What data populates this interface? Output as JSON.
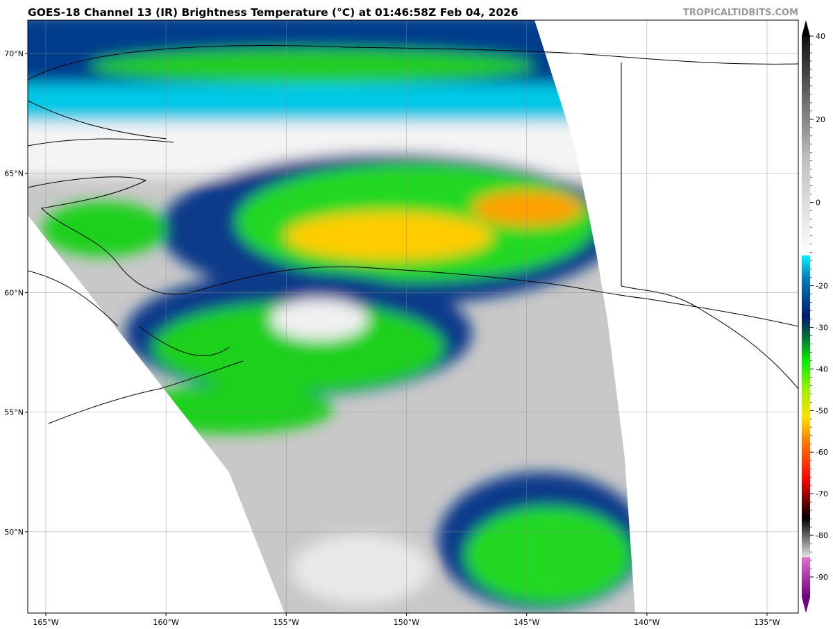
{
  "header": {
    "title": "GOES-18 Channel 13 (IR) Brightness Temperature (°C) at 01:46:58Z Feb 04, 2026",
    "brand": "TROPICALTIDBITS.COM"
  },
  "map": {
    "projection": "lat/lon",
    "lon_labels": [
      "165°W",
      "160°W",
      "155°W",
      "150°W",
      "145°W",
      "140°W",
      "135°W"
    ],
    "lon_values": [
      -165,
      -160,
      -155,
      -150,
      -145,
      -140,
      -135
    ],
    "lat_labels": [
      "70°N",
      "65°N",
      "60°N",
      "55°N",
      "50°N"
    ],
    "lat_values": [
      70,
      65,
      60,
      55,
      50
    ],
    "extent": {
      "lon": [
        -165.75,
        -133.7
      ],
      "lat": [
        46.6,
        71.4
      ]
    },
    "grid": true
  },
  "colorbar": {
    "range": [
      -95,
      45
    ],
    "tick_labels": [
      "40",
      "20",
      "0",
      "-20",
      "-30",
      "-40",
      "-50",
      "-60",
      "-70",
      "-80",
      "-90"
    ],
    "tick_values": [
      40,
      20,
      0,
      -20,
      -30,
      -40,
      -50,
      -60,
      -70,
      -80,
      -90
    ],
    "colors": {
      "warm_top": "#000000",
      "neutral": "#ffffff",
      "cyan": "#00e5ff",
      "navy": "#001a70",
      "green": "#00e000",
      "yellow": "#f0f000",
      "orange": "#ff8000",
      "red": "#ff0000",
      "black": "#000000",
      "gray": "#c0c0c0",
      "pink": "#e070c8",
      "purple": "#700080"
    }
  }
}
